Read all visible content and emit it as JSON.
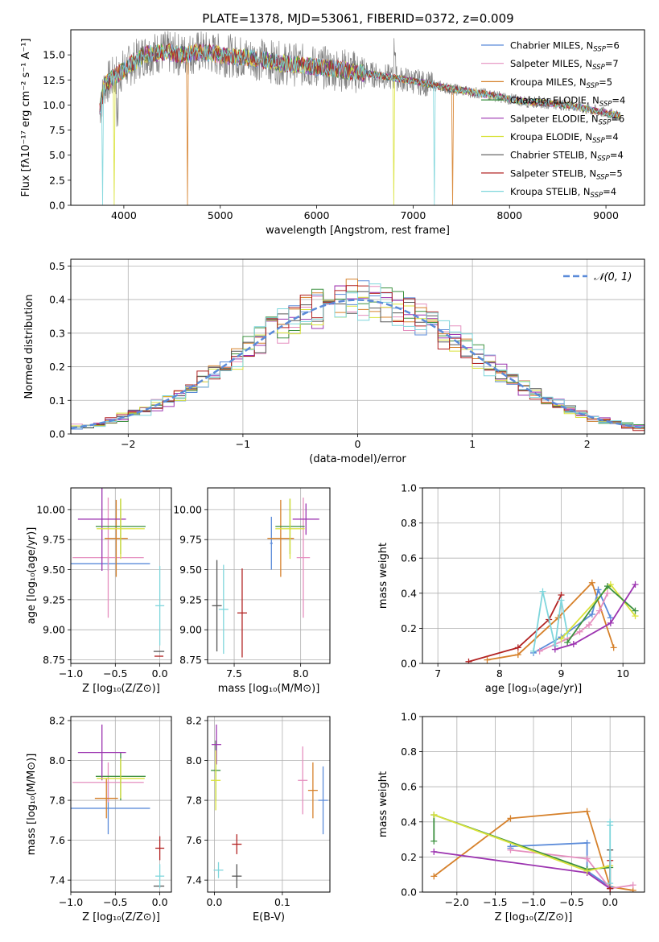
{
  "title": "PLATE=1378, MJD=53061, FIBERID=0372, z=0.009",
  "models": [
    {
      "label": "Chabrier MILES, N",
      "sub": "SSP",
      "suffix": "=6",
      "color": "#5b8bd9"
    },
    {
      "label": "Salpeter MILES, N",
      "sub": "SSP",
      "suffix": "=7",
      "color": "#e58fbf"
    },
    {
      "label": "Kroupa MILES, N",
      "sub": "SSP",
      "suffix": "=5",
      "color": "#d6812b"
    },
    {
      "label": "Chabrier ELODIE, N",
      "sub": "SSP",
      "suffix": "=4",
      "color": "#3d9140"
    },
    {
      "label": "Salpeter ELODIE, N",
      "sub": "SSP",
      "suffix": "=6",
      "color": "#9c34b0"
    },
    {
      "label": "Kroupa ELODIE, N",
      "sub": "SSP",
      "suffix": "=4",
      "color": "#d9e23a"
    },
    {
      "label": "Chabrier STELIB, N",
      "sub": "SSP",
      "suffix": "=4",
      "color": "#555555"
    },
    {
      "label": "Salpeter STELIB, N",
      "sub": "SSP",
      "suffix": "=5",
      "color": "#b22222"
    },
    {
      "label": "Kroupa STELIB, N",
      "sub": "SSP",
      "suffix": "=4",
      "color": "#7fd6dc"
    }
  ],
  "chart_data": [
    {
      "id": "spectrum",
      "type": "line",
      "xlabel": "wavelength [Angstrom, rest frame]",
      "ylabel": "Flux [fλ10⁻¹⁷ erg cm⁻² s⁻¹ A⁻¹]",
      "xlim": [
        3450,
        9400
      ],
      "ylim": [
        0,
        17.5
      ],
      "xticks": [
        4000,
        5000,
        6000,
        7000,
        8000,
        9000
      ],
      "yticks": [
        0.0,
        2.5,
        5.0,
        7.5,
        10.0,
        12.5,
        15.0
      ],
      "data_color": "#808080",
      "continuum_x": [
        3750,
        3800,
        3900,
        4000,
        4100,
        4200,
        4400,
        4600,
        4800,
        5000,
        5200,
        5400,
        5600,
        5800,
        6000,
        6200,
        6400,
        6600,
        6800,
        7000,
        7200,
        7400,
        7600,
        7800,
        8000,
        8200,
        8400,
        8600,
        8800,
        9000,
        9150
      ],
      "continuum_y": [
        9.5,
        12.0,
        12.8,
        13.5,
        14.2,
        15.0,
        15.3,
        15.0,
        15.3,
        15.0,
        14.8,
        14.6,
        14.2,
        14.0,
        13.8,
        13.6,
        13.3,
        13.0,
        12.7,
        12.4,
        12.0,
        11.6,
        11.3,
        11.0,
        10.6,
        10.3,
        10.2,
        10.0,
        9.6,
        9.2,
        8.9
      ]
    },
    {
      "id": "residuals",
      "type": "step-histogram",
      "xlabel": "(data-model)/error",
      "ylabel": "Normed distribution",
      "xlim": [
        -2.5,
        2.5
      ],
      "ylim": [
        0,
        0.52
      ],
      "xticks": [
        -2,
        -1,
        0,
        1,
        2
      ],
      "yticks": [
        0.0,
        0.1,
        0.2,
        0.3,
        0.4,
        0.5
      ],
      "bin_width": 0.1,
      "gaussian_label": "𝒩(0, 1)",
      "gaussian_color": "#5b8bd9"
    },
    {
      "id": "age-vs-Z",
      "type": "errorbar",
      "xlabel": "Z [log₁₀(Z/Z⊙)]",
      "ylabel": "age  [log₁₀(age/yr)]",
      "xlim": [
        -1.0,
        0.13
      ],
      "ylim": [
        8.72,
        10.18
      ],
      "xticks": [
        -1.0,
        -0.5,
        0.0
      ],
      "yticks": [
        8.75,
        9.0,
        9.25,
        9.5,
        9.75,
        10.0
      ],
      "points": [
        {
          "m": 0,
          "x": -0.58,
          "xe": 0.47,
          "y": 9.55,
          "ye": 0.06
        },
        {
          "m": 1,
          "x": -0.58,
          "xe": 0.4,
          "y": 9.6,
          "ye": 0.5
        },
        {
          "m": 2,
          "x": -0.49,
          "xe": 0.13,
          "y": 9.76,
          "ye": 0.32
        },
        {
          "m": 3,
          "x": -0.44,
          "xe": 0.28,
          "y": 9.86,
          "ye": 0.23
        },
        {
          "m": 4,
          "x": -0.65,
          "xe": 0.27,
          "y": 9.92,
          "ye": 0.43
        },
        {
          "m": 5,
          "x": -0.44,
          "xe": 0.27,
          "y": 9.84,
          "ye": 0.25
        },
        {
          "m": 6,
          "x": -0.01,
          "xe": 0.06,
          "y": 8.82,
          "ye": 0.0
        },
        {
          "m": 7,
          "x": -0.01,
          "xe": 0.05,
          "y": 8.78,
          "ye": 0.0
        },
        {
          "m": 8,
          "x": 0.0,
          "xe": 0.05,
          "y": 9.2,
          "ye": 0.33
        }
      ]
    },
    {
      "id": "age-vs-mass",
      "type": "errorbar",
      "xlabel": "mass [log₁₀(M/M⊙)]",
      "ylabel": "",
      "xlim": [
        7.3,
        8.22
      ],
      "ylim": [
        8.72,
        10.18
      ],
      "xticks": [
        7.5,
        8.0
      ],
      "yticks": [
        8.75,
        9.0,
        9.25,
        9.5,
        9.75,
        10.0
      ],
      "points": [
        {
          "m": 0,
          "x": 7.78,
          "xe": 0.01,
          "y": 9.72,
          "ye": 0.22
        },
        {
          "m": 1,
          "x": 8.02,
          "xe": 0.05,
          "y": 9.6,
          "ye": 0.5
        },
        {
          "m": 2,
          "x": 7.85,
          "xe": 0.1,
          "y": 9.76,
          "ye": 0.32
        },
        {
          "m": 3,
          "x": 7.92,
          "xe": 0.11,
          "y": 9.86,
          "ye": 0.23
        },
        {
          "m": 4,
          "x": 8.04,
          "xe": 0.1,
          "y": 9.92,
          "ye": 0.13
        },
        {
          "m": 5,
          "x": 7.92,
          "xe": 0.11,
          "y": 9.84,
          "ye": 0.25
        },
        {
          "m": 6,
          "x": 7.37,
          "xe": 0.0,
          "y": 9.2,
          "ye": 0.38
        },
        {
          "m": 7,
          "x": 7.56,
          "xe": 0.0,
          "y": 9.14,
          "ye": 0.37
        },
        {
          "m": 8,
          "x": 7.42,
          "xe": 0.0,
          "y": 9.17,
          "ye": 0.37
        }
      ]
    },
    {
      "id": "mass-weight-vs-age",
      "type": "line",
      "xlabel": "age  [log₁₀(age/yr)]",
      "ylabel": "mass weight",
      "xlim": [
        6.75,
        10.35
      ],
      "ylim": [
        0,
        1.0
      ],
      "xticks": [
        7,
        8,
        9,
        10
      ],
      "yticks": [
        0.0,
        0.2,
        0.4,
        0.6,
        0.8,
        1.0
      ],
      "series": [
        {
          "m": 7,
          "x": [
            7.5,
            8.3,
            8.8,
            9.0
          ],
          "y": [
            0.01,
            0.09,
            0.25,
            0.39
          ]
        },
        {
          "m": 2,
          "x": [
            7.8,
            8.3,
            8.95,
            9.5,
            9.85
          ],
          "y": [
            0.02,
            0.05,
            0.26,
            0.46,
            0.09
          ]
        },
        {
          "m": 0,
          "x": [
            8.55,
            9.0,
            9.5,
            9.6,
            9.8
          ],
          "y": [
            0.06,
            0.15,
            0.28,
            0.42,
            0.26
          ]
        },
        {
          "m": 1,
          "x": [
            8.65,
            9.1,
            9.3,
            9.45,
            9.62,
            9.75
          ],
          "y": [
            0.07,
            0.14,
            0.18,
            0.22,
            0.3,
            0.4
          ]
        },
        {
          "m": 8,
          "x": [
            8.55,
            8.7,
            8.9,
            9.0,
            9.1
          ],
          "y": [
            0.07,
            0.41,
            0.1,
            0.36,
            0.17
          ]
        },
        {
          "m": 5,
          "x": [
            9.0,
            9.8,
            10.2
          ],
          "y": [
            0.14,
            0.45,
            0.27
          ]
        },
        {
          "m": 3,
          "x": [
            9.1,
            9.75,
            10.2
          ],
          "y": [
            0.12,
            0.44,
            0.3
          ]
        },
        {
          "m": 4,
          "x": [
            8.9,
            9.2,
            9.8,
            10.2
          ],
          "y": [
            0.08,
            0.11,
            0.23,
            0.45
          ]
        }
      ]
    },
    {
      "id": "mass-vs-Z",
      "type": "errorbar",
      "xlabel": "Z [log₁₀(Z/Z⊙)]",
      "ylabel": "mass [log₁₀(M/M⊙)]",
      "xlim": [
        -1.0,
        0.13
      ],
      "ylim": [
        7.34,
        8.22
      ],
      "xticks": [
        -1.0,
        -0.5,
        0.0
      ],
      "yticks": [
        7.4,
        7.6,
        7.8,
        8.0,
        8.2
      ],
      "points": [
        {
          "m": 0,
          "x": -0.58,
          "xe": 0.47,
          "y": 7.76,
          "ye": 0.13
        },
        {
          "m": 1,
          "x": -0.58,
          "xe": 0.4,
          "y": 7.89,
          "ye": 0.1
        },
        {
          "m": 2,
          "x": -0.6,
          "xe": 0.13,
          "y": 7.81,
          "ye": 0.1
        },
        {
          "m": 3,
          "x": -0.44,
          "xe": 0.28,
          "y": 7.92,
          "ye": 0.12
        },
        {
          "m": 4,
          "x": -0.65,
          "xe": 0.27,
          "y": 8.04,
          "ye": 0.14
        },
        {
          "m": 5,
          "x": -0.44,
          "xe": 0.27,
          "y": 7.91,
          "ye": 0.1
        },
        {
          "m": 6,
          "x": -0.01,
          "xe": 0.06,
          "y": 7.37,
          "ye": 0.0
        },
        {
          "m": 7,
          "x": 0.0,
          "xe": 0.05,
          "y": 7.56,
          "ye": 0.06
        },
        {
          "m": 8,
          "x": 0.0,
          "xe": 0.05,
          "y": 7.42,
          "ye": 0.06
        }
      ]
    },
    {
      "id": "mass-vs-EBV",
      "type": "errorbar",
      "xlabel": "E(B-V)",
      "ylabel": "",
      "xlim": [
        -0.01,
        0.17
      ],
      "ylim": [
        7.34,
        8.22
      ],
      "xticks": [
        0.0,
        0.1
      ],
      "yticks": [
        7.4,
        7.6,
        7.8,
        8.0,
        8.2
      ],
      "points": [
        {
          "m": 0,
          "x": 0.16,
          "xe": 0.0,
          "y": 7.8,
          "ye": 0.17
        },
        {
          "m": 1,
          "x": 0.13,
          "xe": 0.0,
          "y": 7.9,
          "ye": 0.17
        },
        {
          "m": 2,
          "x": 0.145,
          "xe": 0.0,
          "y": 7.85,
          "ye": 0.14
        },
        {
          "m": 3,
          "x": 0.002,
          "xe": 0.0,
          "y": 7.95,
          "ye": 0.15
        },
        {
          "m": 4,
          "x": 0.003,
          "xe": 0.0,
          "y": 8.08,
          "ye": 0.1
        },
        {
          "m": 5,
          "x": 0.002,
          "xe": 0.0,
          "y": 7.9,
          "ye": 0.15
        },
        {
          "m": 6,
          "x": 0.033,
          "xe": 0.0,
          "y": 7.42,
          "ye": 0.06
        },
        {
          "m": 7,
          "x": 0.033,
          "xe": 0.0,
          "y": 7.58,
          "ye": 0.05
        },
        {
          "m": 8,
          "x": 0.006,
          "xe": 0.0,
          "y": 7.45,
          "ye": 0.04
        }
      ]
    },
    {
      "id": "mass-weight-vs-Z",
      "type": "line",
      "xlabel": "Z [log₁₀(Z/Z⊙)]",
      "ylabel": "mass weight",
      "xlim": [
        -2.45,
        0.45
      ],
      "ylim": [
        0,
        1.0
      ],
      "xticks": [
        -2.0,
        -1.5,
        -1.0,
        -0.5,
        0.0
      ],
      "yticks": [
        0.0,
        0.2,
        0.4,
        0.6,
        0.8,
        1.0
      ],
      "series": [
        {
          "m": 2,
          "x": [
            -2.3,
            -1.3,
            -0.3,
            0.0,
            0.3
          ],
          "y": [
            0.09,
            0.42,
            0.46,
            0.03,
            0.01
          ]
        },
        {
          "m": 0,
          "x": [
            -1.3,
            -1.3,
            -0.3,
            -0.3,
            0.0
          ],
          "y": [
            0.25,
            0.26,
            0.28,
            0.12,
            0.03
          ]
        },
        {
          "m": 1,
          "x": [
            -1.3,
            -0.3,
            0.0,
            0.3
          ],
          "y": [
            0.24,
            0.19,
            0.02,
            0.04
          ]
        },
        {
          "m": 4,
          "x": [
            -2.3,
            -0.3,
            0.0
          ],
          "y": [
            0.23,
            0.11,
            0.02
          ]
        },
        {
          "m": 3,
          "x": [
            -2.3,
            -2.3,
            -0.3,
            0.0
          ],
          "y": [
            0.29,
            0.44,
            0.13,
            0.14
          ]
        },
        {
          "m": 5,
          "x": [
            -2.3,
            -0.3,
            0.0
          ],
          "y": [
            0.44,
            0.12,
            0.15
          ]
        },
        {
          "m": 6,
          "x": [
            0.0,
            0.0
          ],
          "y": [
            0.24,
            0.02
          ]
        },
        {
          "m": 7,
          "x": [
            0.0,
            0.0
          ],
          "y": [
            0.18,
            0.02
          ]
        },
        {
          "m": 8,
          "x": [
            0.0,
            0.0,
            0.0
          ],
          "y": [
            0.4,
            0.05,
            0.38
          ]
        }
      ]
    }
  ]
}
